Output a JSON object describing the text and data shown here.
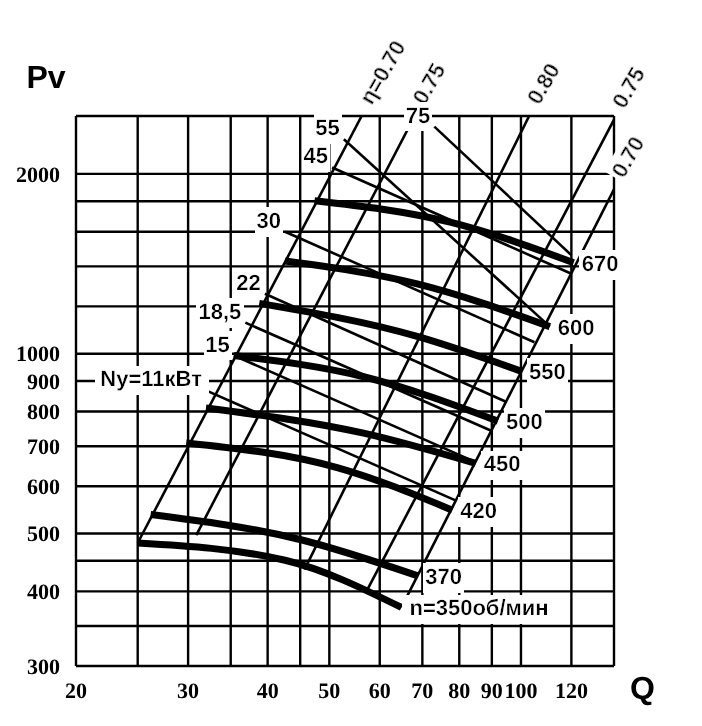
{
  "chart_data": {
    "type": "line",
    "xlabel": "Q",
    "ylabel": "Pv",
    "log": "xy",
    "grid": true,
    "marker": "none",
    "line_style": "solid",
    "xlim": [
      20,
      140
    ],
    "ylim": [
      300,
      2500
    ],
    "xticks": [
      20,
      {
        "value": 25,
        "label": null
      },
      30,
      {
        "value": 35,
        "label": null
      },
      40,
      {
        "value": 45,
        "label": null
      },
      50,
      60,
      70,
      80,
      90,
      100,
      120,
      {
        "value": 140,
        "label": null
      }
    ],
    "yticks": [
      300,
      {
        "value": 350,
        "label": null
      },
      400,
      {
        "value": 450,
        "label": null
      },
      500,
      600,
      700,
      800,
      900,
      1000,
      {
        "value": 1200,
        "label": null
      },
      {
        "value": 1400,
        "label": null
      },
      {
        "value": 1600,
        "label": null
      },
      {
        "value": 1800,
        "label": null
      },
      2000,
      {
        "value": 2500,
        "label": null
      }
    ],
    "series": [
      {
        "name": "n=350об/мин",
        "color": "#000000",
        "x": [
          25,
          42.6,
          64.9
        ],
        "values": [
          482,
          451,
          376
        ]
      },
      {
        "name": "370",
        "color": "#000000",
        "x": [
          26.2,
          44.8,
          68.7
        ],
        "values": [
          538,
          489,
          425
        ]
      },
      {
        "name": "420",
        "color": "#000000",
        "x": [
          29.8,
          51.6,
          78
        ],
        "values": [
          709,
          644,
          547
        ]
      },
      {
        "name": "450",
        "color": "#000000",
        "x": [
          32,
          56.6,
          84.9
        ],
        "values": [
          811,
          736,
          655
        ]
      },
      {
        "name": "500",
        "color": "#000000",
        "x": [
          35.4,
          56.6,
          92
        ],
        "values": [
          993,
          915,
          771
        ]
      },
      {
        "name": "550",
        "color": "#000000",
        "x": [
          38.8,
          68.7,
          100
        ],
        "values": [
          1214,
          1069,
          935
        ]
      },
      {
        "name": "600",
        "color": "#000000",
        "x": [
          42.6,
          68.7,
          111
        ],
        "values": [
          1429,
          1309,
          1110
        ]
      },
      {
        "name": "670",
        "color": "#000000",
        "x": [
          47.4,
          77.4,
          121
        ],
        "values": [
          1803,
          1660,
          1420
        ]
      },
      {
        "name": "η=0.70",
        "color": "#000000",
        "x": [
          25,
          56.2
        ],
        "values": [
          482,
          2500
        ]
      },
      {
        "name": "0.75",
        "color": "#000000",
        "x": [
          30.9,
          68.1
        ],
        "values": [
          497,
          2500
        ]
      },
      {
        "name": "0.80",
        "color": "#000000",
        "x": [
          45.7,
          103
        ],
        "values": [
          435,
          2500
        ]
      },
      {
        "name": "0.75",
        "color": "#000000",
        "x": [
          57.4,
          140
        ],
        "values": [
          403,
          2465
        ]
      },
      {
        "name": "0.70",
        "color": "#000000",
        "x": [
          64.9,
          140
        ],
        "values": [
          376,
          1884
        ]
      },
      {
        "name": "Ny=11кВт",
        "color": "#000000",
        "x": [
          78.9,
          32
        ],
        "values": [
          568,
          868
        ]
      },
      {
        "name": "15",
        "color": "#000000",
        "x": [
          84.7,
          35.4
        ],
        "values": [
          659,
          993
        ]
      },
      {
        "name": "18,5",
        "color": "#000000",
        "x": [
          89.8,
          36.9
        ],
        "values": [
          743,
          1127
        ]
      },
      {
        "name": "22",
        "color": "#000000",
        "x": [
          94.9,
          39.6
        ],
        "values": [
          830,
          1260
        ]
      },
      {
        "name": "30",
        "color": "#000000",
        "x": [
          105,
          42.6
        ],
        "values": [
          1045,
          1600
        ]
      },
      {
        "name": "45",
        "color": "#000000",
        "x": [
          120,
          50.5
        ],
        "values": [
          1361,
          2050
        ]
      },
      {
        "name": "55",
        "color": "#000000",
        "x": [
          111,
          52.7
        ],
        "values": [
          1110,
          2286
        ]
      },
      {
        "name": "75",
        "color": "#000000",
        "x": [
          120,
          73.1
        ],
        "values": [
          1462,
          2400
        ]
      }
    ]
  }
}
